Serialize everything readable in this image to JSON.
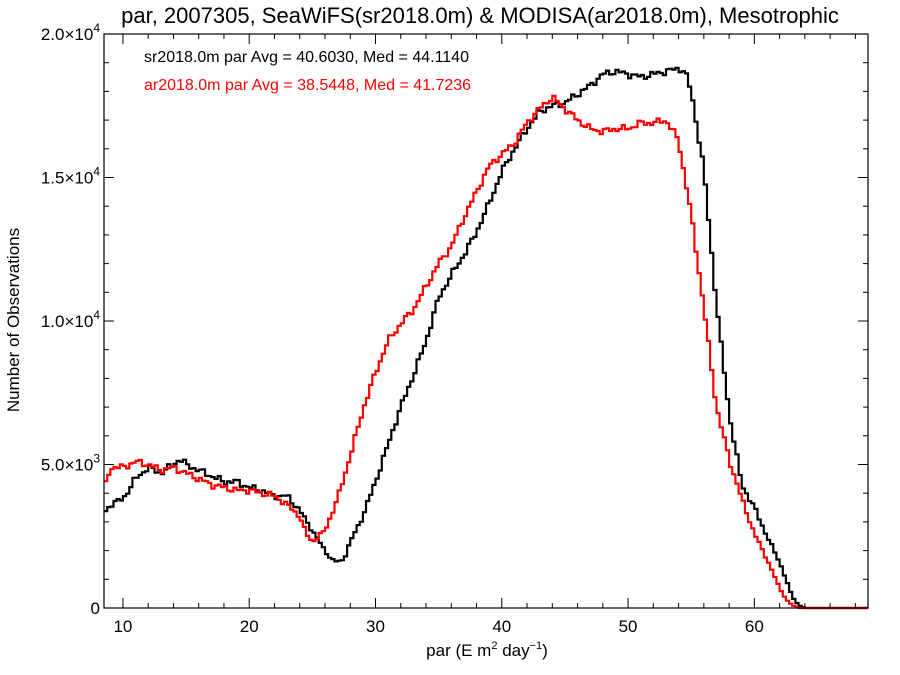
{
  "chart_data": {
    "type": "line",
    "title": "par, 2007305, SeaWiFS(sr2018.0m) & MODISA(ar2018.0m), Mesotrophic",
    "xlabel_parts": [
      "par (E m",
      "2",
      " day",
      "−1",
      ")"
    ],
    "ylabel": "Number of Observations",
    "xlim": [
      8.5,
      69
    ],
    "ylim": [
      0,
      20000
    ],
    "x_ticks": [
      {
        "value": 10,
        "label": "10"
      },
      {
        "value": 20,
        "label": "20"
      },
      {
        "value": 30,
        "label": "30"
      },
      {
        "value": 40,
        "label": "40"
      },
      {
        "value": 50,
        "label": "50"
      },
      {
        "value": 60,
        "label": "60"
      }
    ],
    "y_ticks": [
      {
        "value": 0,
        "mantissa": "0",
        "exp": ""
      },
      {
        "value": 5000,
        "mantissa": "5.0×10",
        "exp": "3"
      },
      {
        "value": 10000,
        "mantissa": "1.0×10",
        "exp": "4"
      },
      {
        "value": 15000,
        "mantissa": "1.5×10",
        "exp": "4"
      },
      {
        "value": 20000,
        "mantissa": "2.0×10",
        "exp": "4"
      }
    ],
    "legend": [
      {
        "text": "sr2018.0m par Avg = 40.6030, Med = 44.1140",
        "color": "#000000"
      },
      {
        "text": "ar2018.0m par Avg = 38.5448, Med = 41.7236",
        "color": "#ff0000"
      }
    ],
    "series": [
      {
        "color": "#000000",
        "style": "step",
        "x": [
          8.5,
          9,
          10,
          11,
          12,
          13,
          14,
          14.5,
          15,
          16,
          17,
          18,
          19,
          20,
          21,
          22,
          23,
          24,
          25,
          26,
          26.5,
          27,
          27.5,
          28,
          29,
          30,
          31,
          32,
          33,
          34,
          35,
          36,
          37,
          38,
          39,
          40,
          41,
          42,
          43,
          44,
          45,
          46,
          47,
          48,
          49,
          50,
          51,
          52,
          53,
          54,
          54.5,
          55,
          56,
          57,
          58,
          59,
          60,
          61,
          62,
          62.5,
          63,
          63.5,
          64,
          65,
          66,
          67,
          69
        ],
        "y": [
          3300,
          3600,
          3800,
          4500,
          4900,
          4700,
          5000,
          5200,
          5000,
          4800,
          4600,
          4400,
          4400,
          4200,
          4100,
          3900,
          3900,
          3400,
          2700,
          2000,
          1700,
          1600,
          1700,
          2300,
          3200,
          4400,
          5700,
          7000,
          8100,
          9300,
          10800,
          11600,
          12300,
          13100,
          14100,
          15200,
          16000,
          16700,
          17300,
          17500,
          17600,
          17900,
          18200,
          18600,
          18700,
          18600,
          18500,
          18600,
          18700,
          18800,
          18700,
          18000,
          15300,
          10600,
          6800,
          4300,
          3500,
          2500,
          1600,
          1000,
          400,
          100,
          0,
          0,
          0,
          0,
          0
        ]
      },
      {
        "color": "#ff0000",
        "style": "step",
        "x": [
          8.5,
          9,
          10,
          11,
          12,
          13,
          14,
          15,
          16,
          17,
          18,
          19,
          20,
          21,
          22,
          23,
          24,
          24.5,
          25,
          26,
          27,
          28,
          29,
          30,
          31,
          32,
          33,
          34,
          35,
          36,
          37,
          38,
          39,
          40,
          41,
          42,
          43,
          44,
          45,
          46,
          47,
          48,
          49,
          50,
          51,
          52,
          53,
          54,
          55,
          56,
          57,
          58,
          59,
          60,
          61,
          62,
          62.5,
          63,
          63.5,
          64,
          66,
          69
        ],
        "y": [
          4100,
          4900,
          4900,
          5100,
          5000,
          4800,
          4900,
          4700,
          4500,
          4300,
          4200,
          4100,
          4100,
          4000,
          3900,
          3600,
          3200,
          2600,
          2300,
          2700,
          3800,
          5300,
          6900,
          8200,
          9300,
          9900,
          10400,
          11200,
          12000,
          12600,
          13600,
          14500,
          15400,
          15800,
          16200,
          16900,
          17400,
          17800,
          17400,
          17000,
          16700,
          16600,
          16700,
          16700,
          16900,
          16900,
          17000,
          16300,
          13700,
          10500,
          7000,
          5200,
          3800,
          2600,
          1700,
          700,
          300,
          100,
          0,
          0,
          0,
          0
        ]
      }
    ]
  }
}
